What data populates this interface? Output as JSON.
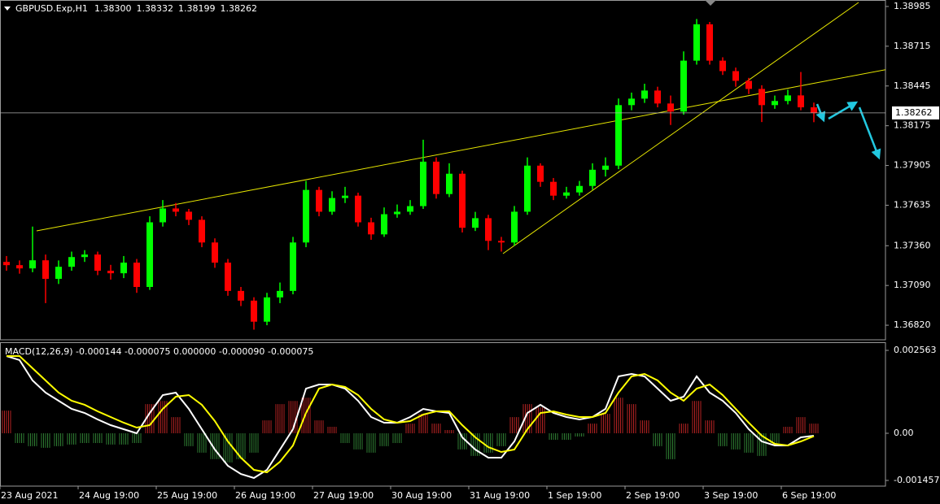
{
  "chart_data": {
    "type": "candlestick",
    "title": "GBPUSD.Exp,H1",
    "last_bar_labels": [
      "1.38300",
      "1.38332",
      "1.38199",
      "1.38262"
    ],
    "categories": [
      "23 Aug 2021",
      null,
      null,
      null,
      null,
      null,
      "24 Aug 19:00",
      null,
      null,
      null,
      null,
      null,
      "25 Aug 19:00",
      null,
      null,
      null,
      null,
      null,
      "26 Aug 19:00",
      null,
      null,
      null,
      null,
      null,
      "27 Aug 19:00",
      null,
      null,
      null,
      null,
      null,
      "30 Aug 19:00",
      null,
      null,
      null,
      null,
      null,
      "31 Aug 19:00",
      null,
      null,
      null,
      null,
      null,
      "1 Sep 19:00",
      null,
      null,
      null,
      null,
      null,
      "2 Sep 19:00",
      null,
      null,
      null,
      null,
      null,
      "3 Sep 19:00",
      null,
      null,
      null,
      null,
      null,
      "6 Sep 19:00",
      null,
      null
    ],
    "open": [
      1.3725,
      1.37228,
      1.37206,
      1.37261,
      1.37135,
      1.37217,
      1.37283,
      1.373,
      1.3719,
      1.37173,
      1.37245,
      1.3708,
      1.37519,
      1.37613,
      1.37591,
      1.37536,
      1.37382,
      1.37245,
      1.37053,
      1.36987,
      1.36844,
      1.37009,
      1.37053,
      1.37382,
      1.37739,
      1.37591,
      1.37684,
      1.377,
      1.37519,
      1.37437,
      1.37574,
      1.37591,
      1.37629,
      1.37931,
      1.37711,
      1.37849,
      1.37482,
      1.37547,
      1.37393,
      1.37382,
      1.37591,
      1.37904,
      1.37794,
      1.377,
      1.37722,
      1.37766,
      1.37876,
      1.37904,
      1.38315,
      1.38359,
      1.38414,
      1.38326,
      1.38271,
      1.38617,
      1.38864,
      1.38617,
      1.38546,
      1.3848,
      1.38425,
      1.38315,
      1.38343,
      1.38381,
      1.383
    ],
    "high": [
      1.3729,
      1.3726,
      1.3749,
      1.373,
      1.3726,
      1.3732,
      1.3733,
      1.3732,
      1.3723,
      1.3729,
      1.3727,
      1.3756,
      1.3767,
      1.3765,
      1.3761,
      1.3756,
      1.3741,
      1.3727,
      1.3708,
      1.3701,
      1.3704,
      1.3711,
      1.3742,
      1.378,
      1.3776,
      1.3773,
      1.3776,
      1.3772,
      1.3755,
      1.3762,
      1.3764,
      1.3767,
      1.3808,
      1.3796,
      1.3792,
      1.3787,
      1.3759,
      1.3757,
      1.3742,
      1.3763,
      1.3796,
      1.3792,
      1.3782,
      1.3776,
      1.378,
      1.3792,
      1.3796,
      1.3836,
      1.384,
      1.3846,
      1.3844,
      1.3838,
      1.3868,
      1.389,
      1.3888,
      1.3864,
      1.3857,
      1.385,
      1.3845,
      1.3838,
      1.3842,
      1.3854,
      1.38332
    ],
    "low": [
      1.3719,
      1.3717,
      1.3718,
      1.3697,
      1.371,
      1.3719,
      1.3725,
      1.3716,
      1.3713,
      1.3714,
      1.3704,
      1.3706,
      1.3749,
      1.3756,
      1.375,
      1.3735,
      1.3721,
      1.3702,
      1.3695,
      1.3679,
      1.3682,
      1.3697,
      1.3703,
      1.3735,
      1.3756,
      1.3757,
      1.3765,
      1.3749,
      1.374,
      1.3742,
      1.3755,
      1.3757,
      1.3761,
      1.3768,
      1.3769,
      1.3745,
      1.3746,
      1.3733,
      1.3732,
      1.3736,
      1.3757,
      1.3776,
      1.3767,
      1.3768,
      1.377,
      1.3774,
      1.3783,
      1.3788,
      1.3828,
      1.3833,
      1.383,
      1.3818,
      1.3825,
      1.3859,
      1.3859,
      1.3852,
      1.3844,
      1.3839,
      1.382,
      1.3829,
      1.3832,
      1.3828,
      1.38199
    ],
    "close": [
      1.37228,
      1.37206,
      1.37261,
      1.37135,
      1.37217,
      1.37283,
      1.373,
      1.3719,
      1.37173,
      1.37245,
      1.3708,
      1.37519,
      1.37613,
      1.37591,
      1.37536,
      1.37382,
      1.37245,
      1.37053,
      1.36987,
      1.36844,
      1.37009,
      1.37053,
      1.37382,
      1.37739,
      1.37591,
      1.37684,
      1.377,
      1.37519,
      1.37437,
      1.37574,
      1.37591,
      1.37629,
      1.37931,
      1.37711,
      1.37849,
      1.37482,
      1.37547,
      1.37393,
      1.37382,
      1.37591,
      1.37904,
      1.37794,
      1.377,
      1.37722,
      1.37766,
      1.37876,
      1.37904,
      1.38315,
      1.38359,
      1.38414,
      1.38326,
      1.38271,
      1.38617,
      1.38864,
      1.38617,
      1.38546,
      1.3848,
      1.38425,
      1.38315,
      1.38343,
      1.38381,
      1.383,
      1.38262
    ],
    "up_color": "#00ff00",
    "down_color": "#ff0000",
    "ylim": [
      1.36721,
      1.39029
    ],
    "yticks": [
      1.38985,
      1.38715,
      1.38445,
      1.38175,
      1.37905,
      1.37635,
      {
        "value": 1.3736,
        "label": "1.37360"
      },
      {
        "value": 1.3709,
        "label": "1.37090"
      },
      {
        "value": 1.3682,
        "label": "1.36820"
      }
    ],
    "current_price": 1.38262,
    "macd": {
      "type": "macd",
      "title": "MACD(12,26,9) -0.000144 -0.000075 0.000000 -0.000090 -0.000075",
      "ylim": [
        -0.001633,
        0.002789
      ],
      "yticks": [
        0.002563,
        {
          "value": 0,
          "label": "0.00"
        },
        -0.001457
      ],
      "main": {
        "color": "#ffffff",
        "values": [
          0.002387,
          0.002262,
          0.001633,
          0.001257,
          0.001005,
          0.000754,
          0.000628,
          0.000427,
          0.000251,
          0.000126,
          0,
          0.000628,
          0.001181,
          0.001257,
          0.000754,
          0.000126,
          -0.000503,
          -0.001005,
          -0.001257,
          -0.001382,
          -0.001131,
          -0.000503,
          0.000126,
          0.001382,
          0.001508,
          0.001508,
          0.001382,
          0.001005,
          0.000503,
          0.000327,
          0.000327,
          0.000503,
          0.000754,
          0.000679,
          0.000628,
          -0.000126,
          -0.000503,
          -0.000754,
          -0.000754,
          -0.000251,
          0.000628,
          0.00088,
          0.000628,
          0.000503,
          0.000427,
          0.000503,
          0.000754,
          0.001759,
          0.001834,
          0.001759,
          0.001382,
          0.001005,
          0.001131,
          0.001759,
          0.001257,
          0.001005,
          0.000628,
          0.000126,
          -0.000251,
          -0.000377,
          -0.000377,
          -0.000126,
          -7.5e-05
        ]
      },
      "signal": {
        "color": "#ffff00",
        "values": [
          0.002387,
          0.002387,
          0.00201,
          0.001633,
          0.001257,
          0.001005,
          0.00088,
          0.000679,
          0.000503,
          0.000327,
          0.000176,
          0.000251,
          0.000754,
          0.001131,
          0.001181,
          0.00088,
          0.000377,
          -0.000251,
          -0.000754,
          -0.001131,
          -0.001206,
          -0.00088,
          -0.000377,
          0.000628,
          0.001382,
          0.001508,
          0.001432,
          0.001181,
          0.000754,
          0.000427,
          0.000327,
          0.000377,
          0.000578,
          0.000679,
          0.000679,
          0.000251,
          -0.000126,
          -0.000427,
          -0.000578,
          -0.000503,
          0.000126,
          0.000628,
          0.000679,
          0.000578,
          0.000503,
          0.000503,
          0.000628,
          0.001257,
          0.001759,
          0.001834,
          0.001633,
          0.001257,
          0.001005,
          0.001382,
          0.001508,
          0.001181,
          0.000754,
          0.000327,
          -7.5e-05,
          -0.000327,
          -0.000377,
          -0.000251,
          -9e-05
        ]
      },
      "histogram": {
        "up_color": "#b22222",
        "down_color": "#2e7d32",
        "values": [
          0.0007,
          -0.0003,
          -0.0004,
          -0.00045,
          -0.0004,
          -0.00035,
          -0.0003,
          -0.0003,
          -0.00035,
          -0.00035,
          -0.0003,
          0.0009,
          0.001,
          0.0005,
          -0.0004,
          -0.0006,
          -0.0008,
          -0.0009,
          -0.0008,
          -0.0006,
          0.0004,
          0.0009,
          0.001,
          0.0011,
          0.0004,
          0.0002,
          -0.0003,
          -0.0005,
          -0.0006,
          -0.0004,
          -0.0003,
          0.0003,
          0.0006,
          0.0003,
          0.0001,
          -0.0005,
          -0.0007,
          -0.0006,
          -0.0004,
          0.0005,
          0.0009,
          0.0008,
          -0.0002,
          -0.0002,
          -0.0001,
          0.0003,
          0.0006,
          0.0011,
          0.0009,
          0.0004,
          -0.0004,
          -0.0008,
          0.0003,
          0.001,
          0.0004,
          -0.0004,
          -0.0005,
          -0.0006,
          -0.0007,
          -0.0003,
          0.0002,
          0.0005,
          0.0003
        ]
      }
    }
  }
}
